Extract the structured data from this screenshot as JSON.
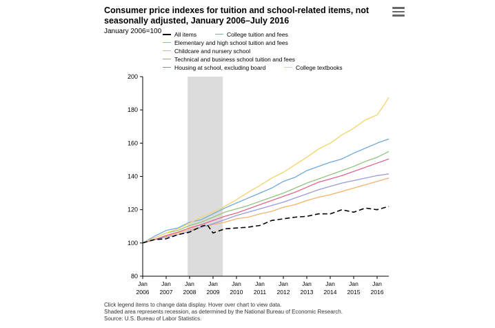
{
  "title": "Consumer price indexes for tuition and school-related items, not seasonally adjusted, January 2006–July 2016",
  "subtitle": "January 2006=100",
  "menu_icon": "hamburger-menu-icon",
  "footnotes": [
    "Click legend items to change data display. Hover over chart to view data.",
    "Shaded area represents recession, as determined by the National Bureau of Economic Research.",
    "Source: U.S. Bureau of Labor Statistics."
  ],
  "chart_data": {
    "type": "line",
    "title": "Consumer price indexes for tuition and school-related items, not seasonally adjusted, January 2006–July 2016",
    "subtitle": "January 2006=100",
    "xlabel": "",
    "ylabel": "",
    "ylim": [
      80,
      200
    ],
    "yticks": [
      80,
      100,
      120,
      140,
      160,
      180,
      200
    ],
    "xlim": [
      2006.0,
      2016.5
    ],
    "xticks": [
      {
        "year": 2006,
        "line1": "Jan",
        "line2": "2006"
      },
      {
        "year": 2007,
        "line1": "Jan",
        "line2": "2007"
      },
      {
        "year": 2008,
        "line1": "Jan",
        "line2": "2008"
      },
      {
        "year": 2009,
        "line1": "Jan",
        "line2": "2009"
      },
      {
        "year": 2010,
        "line1": "Jan",
        "line2": "2010"
      },
      {
        "year": 2011,
        "line1": "Jan",
        "line2": "2011"
      },
      {
        "year": 2012,
        "line1": "Jan",
        "line2": "2012"
      },
      {
        "year": 2013,
        "line1": "Jan",
        "line2": "2013"
      },
      {
        "year": 2014,
        "line1": "Jan",
        "line2": "2014"
      },
      {
        "year": 2015,
        "line1": "Jan",
        "line2": "2015"
      },
      {
        "year": 2016,
        "line1": "Jan",
        "line2": "2016"
      }
    ],
    "recession": {
      "start": 2007.917,
      "end": 2009.417
    },
    "grid": false,
    "legend_position": "top",
    "series": [
      {
        "name": "All items",
        "color": "#000000",
        "dash": true,
        "x": [
          2006.0,
          2006.5,
          2007.0,
          2007.5,
          2008.0,
          2008.5,
          2008.75,
          2009.0,
          2009.5,
          2010.0,
          2010.5,
          2011.0,
          2011.5,
          2012.0,
          2012.5,
          2013.0,
          2013.5,
          2014.0,
          2014.5,
          2015.0,
          2015.5,
          2016.0,
          2016.5
        ],
        "y": [
          100,
          102,
          102.5,
          105,
          106.5,
          110,
          111,
          106,
          108.5,
          109,
          109.5,
          110.5,
          113.5,
          114.5,
          115.5,
          116,
          117.5,
          117.5,
          120,
          118.5,
          121,
          120,
          122
        ]
      },
      {
        "name": "College tuition and fees",
        "color": "#6fa8dc",
        "dash": false,
        "x": [
          2006.0,
          2006.5,
          2007.0,
          2007.5,
          2008.0,
          2008.5,
          2009.0,
          2009.5,
          2010.0,
          2010.5,
          2011.0,
          2011.5,
          2012.0,
          2012.5,
          2013.0,
          2013.5,
          2014.0,
          2014.5,
          2015.0,
          2015.5,
          2016.0,
          2016.5
        ],
        "y": [
          100,
          104,
          107.5,
          109,
          112.5,
          114,
          117.5,
          121,
          124,
          127,
          130,
          133,
          137,
          139.5,
          143.5,
          146,
          148.5,
          150.5,
          154,
          157,
          160,
          162.5
        ]
      },
      {
        "name": "Elementary and high school tuition and fees",
        "color": "#93c47d",
        "dash": false,
        "x": [
          2006.0,
          2006.5,
          2007.0,
          2007.5,
          2008.0,
          2008.5,
          2009.0,
          2009.5,
          2010.0,
          2010.5,
          2011.0,
          2011.5,
          2012.0,
          2012.5,
          2013.0,
          2013.5,
          2014.0,
          2014.5,
          2015.0,
          2015.5,
          2016.0,
          2016.5
        ],
        "y": [
          100,
          103,
          106,
          107.5,
          110.5,
          112.5,
          115.5,
          118.5,
          120.5,
          122.5,
          125,
          127.5,
          130,
          133,
          136,
          138.5,
          141,
          143.5,
          146,
          149,
          151.5,
          155
        ]
      },
      {
        "name": "Childcare and nursery school",
        "color": "#f6b26b",
        "dash": false,
        "x": [
          2006.0,
          2006.5,
          2007.0,
          2007.5,
          2008.0,
          2008.5,
          2009.0,
          2009.5,
          2010.0,
          2010.5,
          2011.0,
          2011.5,
          2012.0,
          2012.5,
          2013.0,
          2013.5,
          2014.0,
          2014.5,
          2015.0,
          2015.5,
          2016.0,
          2016.5
        ],
        "y": [
          100,
          102,
          104,
          106,
          108,
          109.5,
          111,
          112.5,
          114.5,
          115.5,
          117.5,
          119,
          121.5,
          123,
          125.5,
          127.5,
          129,
          131,
          133,
          135,
          137,
          139
        ]
      },
      {
        "name": "Technical and business school tuition and fees",
        "color": "#9999dd",
        "dash": false,
        "x": [
          2006.0,
          2006.5,
          2007.0,
          2007.5,
          2008.0,
          2008.5,
          2009.0,
          2009.5,
          2010.0,
          2010.5,
          2011.0,
          2011.5,
          2012.0,
          2012.5,
          2013.0,
          2013.5,
          2014.0,
          2014.5,
          2015.0,
          2015.5,
          2016.0,
          2016.5
        ],
        "y": [
          100,
          102,
          103.5,
          105,
          107,
          109.5,
          111.5,
          114,
          116.5,
          118.5,
          120.5,
          122.5,
          124.5,
          127,
          129.5,
          132,
          134,
          136,
          137.5,
          139,
          140.5,
          141.5
        ]
      },
      {
        "name": "Housing at school, excluding board",
        "color": "#e06688",
        "dash": false,
        "x": [
          2006.0,
          2006.5,
          2007.0,
          2007.5,
          2008.0,
          2008.5,
          2009.0,
          2009.5,
          2010.0,
          2010.5,
          2011.0,
          2011.5,
          2012.0,
          2012.5,
          2013.0,
          2013.5,
          2014.0,
          2014.5,
          2015.0,
          2015.5,
          2016.0,
          2016.5
        ],
        "y": [
          100,
          102,
          104.5,
          106.5,
          109,
          111,
          113.5,
          116,
          118,
          120.5,
          123,
          125.5,
          128,
          130.5,
          133.5,
          136.5,
          138.5,
          140.5,
          143,
          145.5,
          148,
          150.5
        ]
      },
      {
        "name": "College textbooks",
        "color": "#f1d46b",
        "dash": false,
        "x": [
          2006.0,
          2006.5,
          2007.0,
          2007.5,
          2008.0,
          2008.5,
          2009.0,
          2009.5,
          2010.0,
          2010.5,
          2011.0,
          2011.5,
          2012.0,
          2012.5,
          2013.0,
          2013.5,
          2014.0,
          2014.5,
          2015.0,
          2015.5,
          2016.0,
          2016.25,
          2016.5
        ],
        "y": [
          100,
          103,
          106,
          108.5,
          112,
          115.5,
          118.5,
          122,
          126,
          130.5,
          134.5,
          139,
          142.5,
          147,
          151.5,
          156.5,
          160,
          165,
          169,
          174,
          177,
          182,
          187.5
        ]
      }
    ]
  }
}
